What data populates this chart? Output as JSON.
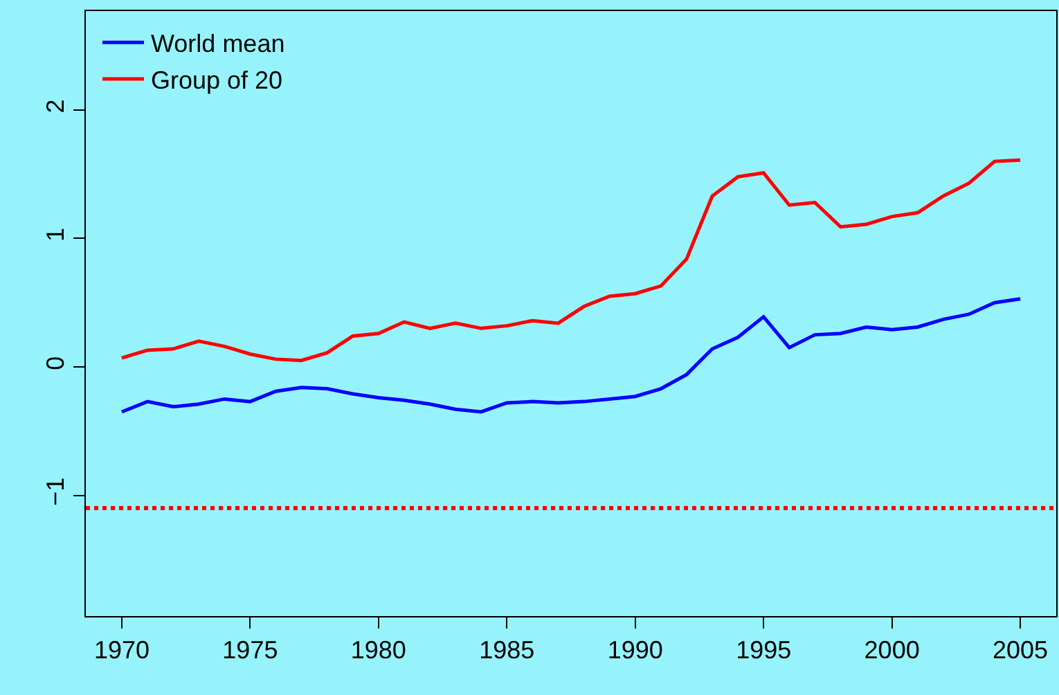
{
  "chart_data": {
    "type": "line",
    "x": [
      1970,
      1971,
      1972,
      1973,
      1974,
      1975,
      1976,
      1977,
      1978,
      1979,
      1980,
      1981,
      1982,
      1983,
      1984,
      1985,
      1986,
      1987,
      1988,
      1989,
      1990,
      1991,
      1992,
      1993,
      1994,
      1995,
      1996,
      1997,
      1998,
      1999,
      2000,
      2001,
      2002,
      2003,
      2004,
      2005
    ],
    "series": [
      {
        "name": "World mean",
        "color": "#0000ff",
        "values": [
          -0.35,
          -0.27,
          -0.31,
          -0.29,
          -0.25,
          -0.27,
          -0.19,
          -0.16,
          -0.17,
          -0.21,
          -0.24,
          -0.26,
          -0.29,
          -0.33,
          -0.35,
          -0.28,
          -0.27,
          -0.28,
          -0.27,
          -0.25,
          -0.23,
          -0.17,
          -0.06,
          0.14,
          0.23,
          0.39,
          0.15,
          0.25,
          0.26,
          0.31,
          0.29,
          0.31,
          0.37,
          0.41,
          0.5,
          0.53
        ]
      },
      {
        "name": "Group of 20",
        "color": "#ff0000",
        "values": [
          0.07,
          0.13,
          0.14,
          0.2,
          0.16,
          0.1,
          0.06,
          0.05,
          0.11,
          0.24,
          0.26,
          0.35,
          0.3,
          0.34,
          0.3,
          0.32,
          0.36,
          0.34,
          0.47,
          0.55,
          0.57,
          0.63,
          0.84,
          1.33,
          1.48,
          1.51,
          1.26,
          1.28,
          1.09,
          1.11,
          1.17,
          1.2,
          1.33,
          1.43,
          1.6,
          1.61
        ]
      }
    ],
    "xlim": [
      1968.6,
      2006.4
    ],
    "xticks": [
      1970,
      1975,
      1980,
      1985,
      1990,
      1995,
      2000,
      2005
    ],
    "ylim": [
      -1.94,
      2.77
    ],
    "yticks": [
      {
        "value": -1,
        "label": "−1"
      },
      0,
      1,
      2
    ],
    "ref_lines": [
      {
        "axis": "y",
        "value": -1.1,
        "color": "#ff0000",
        "line_style": "dotted"
      }
    ],
    "legend": "top left",
    "grid": false,
    "marker": "none",
    "line_style": "solid"
  }
}
